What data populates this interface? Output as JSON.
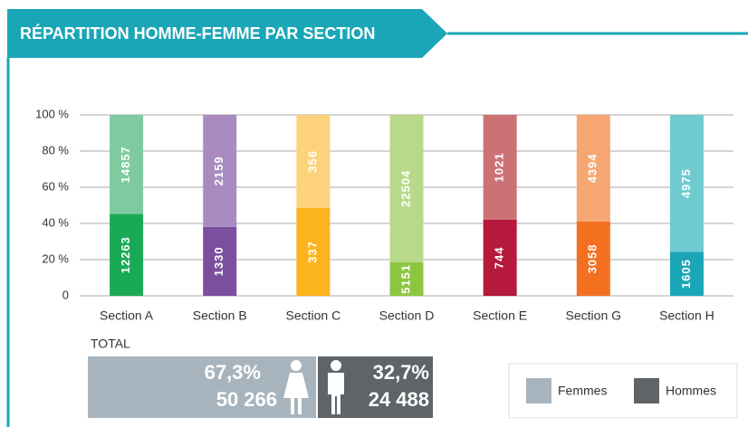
{
  "chart_data": {
    "type": "bar",
    "stacking": "percent",
    "title": "RÉPARTITION HOMME-FEMME PAR SECTION",
    "categories": [
      "Section A",
      "Section B",
      "Section C",
      "Section D",
      "Section E",
      "Section G",
      "Section H"
    ],
    "series": [
      {
        "name": "Hommes",
        "color": "#5f6468",
        "total_percent": "32,7%",
        "total_count": "24 488",
        "values": [
          12263,
          1330,
          337,
          5151,
          744,
          3058,
          1605
        ],
        "bar_colors": [
          "#1aaa55",
          "#7b4f9e",
          "#fbb41e",
          "#8cc63f",
          "#b5193c",
          "#f37021",
          "#1aa6b7"
        ]
      },
      {
        "name": "Femmes",
        "color": "#a7b4bd",
        "total_percent": "67,3%",
        "total_count": "50 266",
        "values": [
          14857,
          2159,
          356,
          22504,
          1021,
          4394,
          4975
        ],
        "bar_colors": [
          "#7fcb9f",
          "#a98bc0",
          "#fdd27c",
          "#b9d98a",
          "#cc7274",
          "#f6a673",
          "#6fcbcf"
        ]
      }
    ],
    "totals_label": "TOTAL",
    "ylim": [
      0,
      100
    ],
    "yticks": [
      0,
      {
        "value": 20,
        "label": "20 %"
      },
      {
        "value": 40,
        "label": "40 %"
      },
      {
        "value": 60,
        "label": "60 %"
      },
      {
        "value": 80,
        "label": "80 %"
      },
      {
        "value": 100,
        "label": "100 %"
      }
    ],
    "grid": true
  }
}
